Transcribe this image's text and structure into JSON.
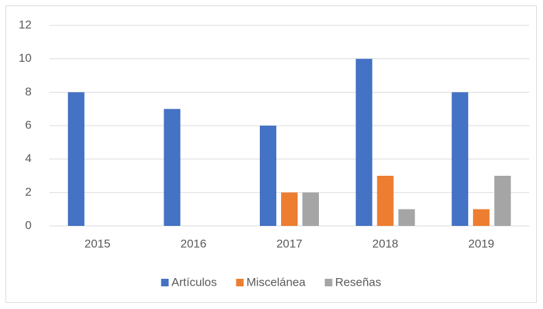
{
  "chart_data": {
    "type": "bar",
    "categories": [
      "2015",
      "2016",
      "2017",
      "2018",
      "2019"
    ],
    "series": [
      {
        "name": "Artículos",
        "color": "#4472c4",
        "values": [
          8,
          7,
          6,
          10,
          8
        ]
      },
      {
        "name": "Miscelánea",
        "color": "#ed7d31",
        "values": [
          0,
          0,
          2,
          3,
          1
        ]
      },
      {
        "name": "Reseñas",
        "color": "#a5a5a5",
        "values": [
          0,
          0,
          2,
          1,
          3
        ]
      }
    ],
    "ylim": [
      0,
      12
    ],
    "yticks": [
      0,
      2,
      4,
      6,
      8,
      10,
      12
    ],
    "grid": true,
    "legend": "bottom"
  }
}
